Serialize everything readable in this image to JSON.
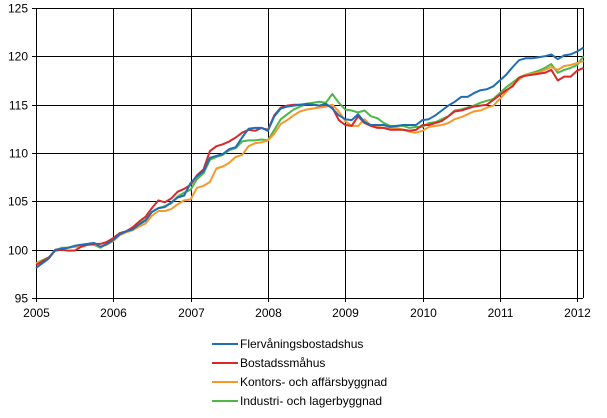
{
  "chart_data": {
    "type": "line",
    "title": "",
    "xlabel": "",
    "ylabel": "",
    "ylim": [
      95,
      125
    ],
    "yticks": [
      95,
      100,
      105,
      110,
      115,
      120,
      125
    ],
    "xticks": [
      "2005",
      "2006",
      "2007",
      "2008",
      "2009",
      "2010",
      "2011",
      "2012"
    ],
    "x_start": "2005-01",
    "frequency": "monthly",
    "grid": true,
    "legend_position": "bottom",
    "series": [
      {
        "name": "Flervåningsbostadshus",
        "color": "#1f6db5",
        "values": [
          98.1,
          98.6,
          99.1,
          100.0,
          100.1,
          100.2,
          100.4,
          100.5,
          100.6,
          100.7,
          100.3,
          100.6,
          101.0,
          101.6,
          101.9,
          102.1,
          102.6,
          103.0,
          103.9,
          104.3,
          104.4,
          104.9,
          105.4,
          105.6,
          106.9,
          107.6,
          108.1,
          109.5,
          109.7,
          109.9,
          110.4,
          110.6,
          111.6,
          112.5,
          112.6,
          112.6,
          112.3,
          113.8,
          114.6,
          114.8,
          114.9,
          115.0,
          115.1,
          115.0,
          114.9,
          115.1,
          114.6,
          113.9,
          113.5,
          113.4,
          114.0,
          113.2,
          112.9,
          112.9,
          112.9,
          112.7,
          112.8,
          112.9,
          112.9,
          112.9,
          113.4,
          113.5,
          113.9,
          114.4,
          114.9,
          115.3,
          115.8,
          115.8,
          116.2,
          116.5,
          116.6,
          116.9,
          117.5,
          118.1,
          118.9,
          119.6,
          119.8,
          119.8,
          119.9,
          120.0,
          120.2,
          119.7,
          120.1,
          120.2,
          120.5,
          120.9
        ]
      },
      {
        "name": "Bostadssmåhus",
        "color": "#d8282b",
        "values": [
          98.4,
          98.8,
          99.2,
          99.9,
          100.0,
          99.9,
          99.9,
          100.3,
          100.5,
          100.6,
          100.6,
          100.8,
          101.2,
          101.7,
          101.9,
          102.3,
          102.9,
          103.4,
          104.3,
          105.1,
          104.9,
          105.3,
          106.0,
          106.3,
          106.7,
          107.7,
          108.3,
          110.2,
          110.7,
          110.9,
          111.2,
          111.6,
          112.1,
          112.4,
          112.3,
          112.6,
          112.4,
          113.9,
          114.7,
          114.9,
          115.0,
          115.0,
          115.0,
          115.0,
          114.9,
          115.0,
          114.7,
          113.4,
          112.9,
          112.8,
          113.8,
          113.1,
          112.8,
          112.6,
          112.6,
          112.4,
          112.4,
          112.4,
          112.3,
          112.4,
          112.9,
          112.9,
          113.1,
          113.3,
          113.8,
          114.3,
          114.4,
          114.6,
          114.8,
          114.9,
          115.0,
          115.5,
          116.0,
          116.5,
          116.9,
          117.8,
          118.0,
          118.1,
          118.2,
          118.3,
          118.6,
          117.5,
          117.9,
          117.9,
          118.5,
          118.8
        ]
      },
      {
        "name": "Kontors- och affärsbyggnad",
        "color": "#f5992d",
        "values": [
          98.6,
          98.8,
          99.2,
          100.0,
          100.1,
          100.2,
          100.3,
          100.4,
          100.5,
          100.6,
          100.3,
          100.5,
          100.9,
          101.5,
          101.8,
          102.0,
          102.4,
          102.7,
          103.5,
          104.0,
          104.0,
          104.2,
          104.7,
          105.1,
          105.2,
          106.4,
          106.6,
          107.0,
          108.4,
          108.6,
          109.0,
          109.6,
          109.8,
          110.7,
          111.0,
          111.1,
          111.3,
          112.0,
          113.0,
          113.4,
          113.9,
          114.3,
          114.5,
          114.6,
          114.7,
          114.8,
          115.0,
          114.3,
          113.3,
          112.8,
          112.8,
          113.5,
          112.8,
          112.7,
          112.6,
          112.6,
          112.6,
          112.4,
          112.2,
          112.1,
          112.3,
          112.7,
          112.8,
          112.9,
          113.1,
          113.5,
          113.7,
          114.0,
          114.3,
          114.4,
          114.7,
          114.9,
          115.6,
          116.3,
          117.1,
          117.6,
          118.1,
          118.2,
          118.3,
          118.6,
          118.9,
          118.6,
          119.0,
          119.1,
          119.3,
          119.5
        ]
      },
      {
        "name": "Industri- och lagerbyggnad",
        "color": "#4db748",
        "values": [
          98.6,
          98.9,
          99.2,
          99.9,
          100.2,
          100.2,
          100.3,
          100.3,
          100.5,
          100.5,
          100.2,
          100.6,
          101.0,
          101.7,
          101.9,
          102.2,
          102.7,
          103.1,
          103.9,
          104.3,
          104.5,
          104.8,
          105.5,
          105.9,
          106.2,
          107.3,
          107.9,
          109.3,
          109.6,
          109.8,
          110.3,
          110.5,
          111.2,
          111.3,
          111.3,
          111.4,
          111.3,
          112.4,
          113.5,
          114.0,
          114.5,
          114.8,
          115.1,
          115.2,
          115.3,
          115.2,
          116.1,
          115.2,
          114.5,
          114.4,
          114.2,
          114.4,
          113.8,
          113.6,
          113.1,
          112.8,
          112.8,
          112.8,
          112.6,
          112.7,
          112.7,
          113.1,
          113.2,
          113.5,
          113.8,
          114.4,
          114.5,
          114.7,
          114.9,
          115.2,
          115.4,
          115.6,
          116.2,
          116.8,
          117.3,
          117.8,
          118.1,
          118.3,
          118.5,
          118.8,
          119.2,
          118.3,
          118.6,
          118.8,
          119.1,
          120.0
        ]
      }
    ]
  },
  "legend": {
    "items": [
      {
        "label": "Flervåningsbostadshus",
        "color": "#1f6db5"
      },
      {
        "label": "Bostadssmåhus",
        "color": "#d8282b"
      },
      {
        "label": "Kontors- och affärsbyggnad",
        "color": "#f5992d"
      },
      {
        "label": "Industri- och lagerbyggnad",
        "color": "#4db748"
      }
    ]
  }
}
